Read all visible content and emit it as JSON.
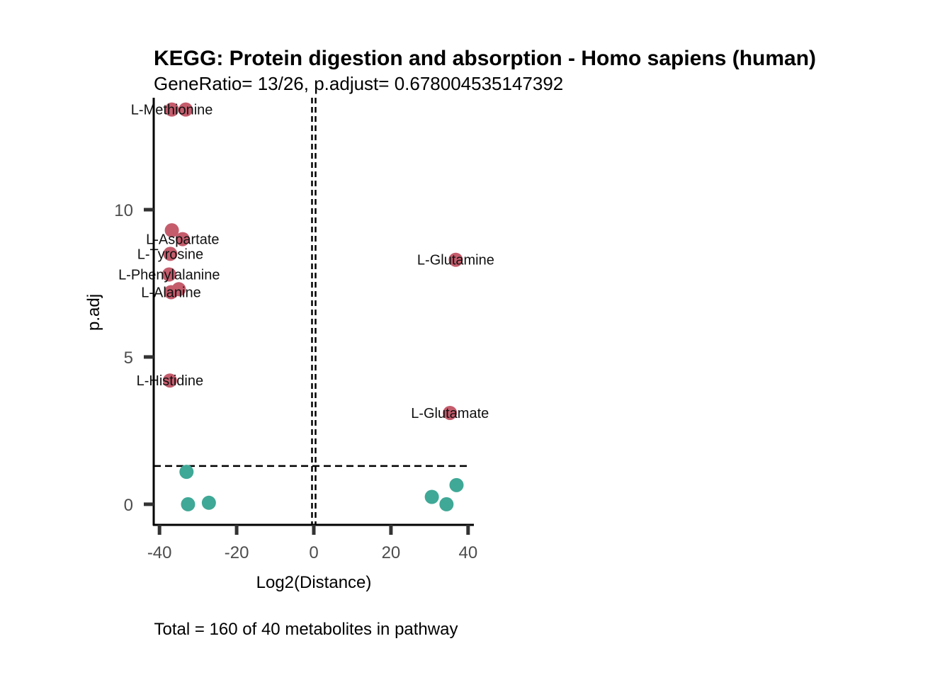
{
  "chart_data": {
    "type": "scatter",
    "title": "KEGG: Protein digestion and absorption - Homo sapiens (human)",
    "subtitle": "GeneRatio= 13/26, p.adjust= 0.678004535147392",
    "xlabel": "Log2(Distance)",
    "ylabel": "p.adj",
    "caption": "Total = 160 of 40 metabolites in pathway",
    "xlim": [
      -41.5,
      41.5
    ],
    "ylim": [
      -0.7,
      13.8
    ],
    "x_ticks": [
      -40,
      -20,
      0,
      20,
      40
    ],
    "y_ticks": [
      0,
      5,
      10
    ],
    "grid": false,
    "reference_lines": {
      "x": [
        0
      ],
      "y": [
        1.3
      ]
    },
    "colors": {
      "significant": "#C45C6C",
      "not_significant": "#3FA896",
      "axis": "#000000",
      "tick": "#333333"
    },
    "series": [
      {
        "points": [
          {
            "x": -36.8,
            "y": 13.4,
            "label": "L-Methionine"
          },
          {
            "x": -33.2,
            "y": 13.4,
            "label": ""
          },
          {
            "x": -36.8,
            "y": 9.3,
            "label": ""
          },
          {
            "x": -34.0,
            "y": 9.0,
            "label": "L-Aspartate"
          },
          {
            "x": -37.2,
            "y": 8.5,
            "label": "L-Tyrosine"
          },
          {
            "x": -37.5,
            "y": 7.8,
            "label": "L-Phenylalanine"
          },
          {
            "x": -37.0,
            "y": 7.2,
            "label": "L-Alanine"
          },
          {
            "x": -35.0,
            "y": 7.3,
            "label": ""
          },
          {
            "x": -37.3,
            "y": 4.2,
            "label": "L-Histidine"
          },
          {
            "x": 36.8,
            "y": 8.3,
            "label": "L-Glutamine"
          },
          {
            "x": 35.3,
            "y": 3.1,
            "label": "L-Glutamate"
          }
        ],
        "color": "#C45C6C"
      },
      {
        "points": [
          {
            "x": -33.0,
            "y": 1.1
          },
          {
            "x": -32.6,
            "y": 0.0
          },
          {
            "x": -27.2,
            "y": 0.05
          },
          {
            "x": 30.6,
            "y": 0.25
          },
          {
            "x": 34.4,
            "y": 0.0
          },
          {
            "x": 37.0,
            "y": 0.65
          }
        ],
        "color": "#3FA896"
      }
    ]
  }
}
